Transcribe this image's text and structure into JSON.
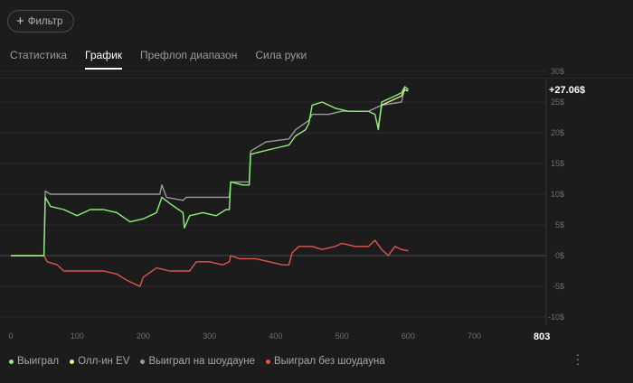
{
  "filter": {
    "label": "Фильтр"
  },
  "tabs": [
    {
      "label": "Статистика",
      "active": false
    },
    {
      "label": "График",
      "active": true
    },
    {
      "label": "Префлоп диапазон",
      "active": false
    },
    {
      "label": "Сила руки",
      "active": false
    }
  ],
  "colors": {
    "won": "#8cf07a",
    "allin_ev": "#e6f587",
    "showdown": "#9a9a9a",
    "non_showdown": "#e0554d"
  },
  "chart_data": {
    "type": "line",
    "final_value_label": "+27.06$",
    "last_x_label": "803",
    "xlim": [
      0,
      803
    ],
    "ylim": [
      -10,
      30
    ],
    "x_ticks": [
      "0",
      "100",
      "200",
      "300",
      "400",
      "500",
      "600",
      "700"
    ],
    "y_ticks": [
      "30$",
      "25$",
      "20$",
      "15$",
      "10$",
      "5$",
      "0$",
      "-5$",
      "-10$"
    ],
    "series": [
      {
        "name": "Выиграл",
        "color": "#8cf07a",
        "points": [
          [
            0,
            0
          ],
          [
            50,
            0
          ],
          [
            52,
            9.5
          ],
          [
            60,
            8
          ],
          [
            80,
            7.5
          ],
          [
            100,
            6.5
          ],
          [
            120,
            7.5
          ],
          [
            140,
            7.5
          ],
          [
            160,
            7
          ],
          [
            180,
            5.5
          ],
          [
            200,
            6
          ],
          [
            220,
            7
          ],
          [
            228,
            9.5
          ],
          [
            240,
            8.5
          ],
          [
            260,
            7
          ],
          [
            262,
            4.5
          ],
          [
            270,
            6.5
          ],
          [
            290,
            7
          ],
          [
            310,
            6.5
          ],
          [
            325,
            7.5
          ],
          [
            330,
            7.5
          ],
          [
            332,
            12
          ],
          [
            350,
            11.5
          ],
          [
            360,
            11.5
          ],
          [
            362,
            16.5
          ],
          [
            380,
            17
          ],
          [
            400,
            17.5
          ],
          [
            420,
            18
          ],
          [
            430,
            19.5
          ],
          [
            445,
            20.5
          ],
          [
            450,
            21.5
          ],
          [
            455,
            24.5
          ],
          [
            470,
            25
          ],
          [
            490,
            24
          ],
          [
            510,
            23.5
          ],
          [
            540,
            23.5
          ],
          [
            550,
            23
          ],
          [
            555,
            20.5
          ],
          [
            560,
            25
          ],
          [
            580,
            26
          ],
          [
            590,
            26.5
          ],
          [
            595,
            27.5
          ],
          [
            600,
            27.06
          ]
        ]
      },
      {
        "name": "Олл-ин EV",
        "color": "#e6f587",
        "points": [
          [
            555,
            21
          ],
          [
            560,
            24.5
          ],
          [
            580,
            25.5
          ],
          [
            590,
            26
          ],
          [
            595,
            27
          ],
          [
            600,
            26.8
          ]
        ]
      },
      {
        "name": "Выиграл на шоудауне",
        "color": "#9a9a9a",
        "points": [
          [
            0,
            0
          ],
          [
            50,
            0
          ],
          [
            52,
            10.5
          ],
          [
            60,
            10
          ],
          [
            100,
            10
          ],
          [
            150,
            10
          ],
          [
            200,
            10
          ],
          [
            225,
            10
          ],
          [
            228,
            11.5
          ],
          [
            235,
            9.5
          ],
          [
            260,
            9
          ],
          [
            265,
            9.5
          ],
          [
            300,
            9.5
          ],
          [
            330,
            9.5
          ],
          [
            332,
            12
          ],
          [
            360,
            12
          ],
          [
            362,
            17
          ],
          [
            385,
            18.5
          ],
          [
            420,
            19
          ],
          [
            430,
            20.5
          ],
          [
            450,
            22
          ],
          [
            455,
            23
          ],
          [
            480,
            23
          ],
          [
            500,
            23.5
          ],
          [
            540,
            23.5
          ],
          [
            560,
            24.5
          ],
          [
            590,
            25
          ],
          [
            595,
            27.5
          ],
          [
            600,
            27
          ]
        ]
      },
      {
        "name": "Выиграл без шоудауна",
        "color": "#e0554d",
        "points": [
          [
            0,
            0
          ],
          [
            50,
            0
          ],
          [
            55,
            -1
          ],
          [
            70,
            -1.5
          ],
          [
            80,
            -2.5
          ],
          [
            100,
            -2.5
          ],
          [
            120,
            -2.5
          ],
          [
            140,
            -2.5
          ],
          [
            160,
            -3
          ],
          [
            175,
            -4
          ],
          [
            195,
            -5
          ],
          [
            200,
            -3.5
          ],
          [
            220,
            -2
          ],
          [
            240,
            -2.5
          ],
          [
            270,
            -2.5
          ],
          [
            280,
            -1
          ],
          [
            300,
            -1
          ],
          [
            320,
            -1.5
          ],
          [
            330,
            -1
          ],
          [
            332,
            0
          ],
          [
            345,
            -0.5
          ],
          [
            370,
            -0.5
          ],
          [
            390,
            -1
          ],
          [
            410,
            -1.5
          ],
          [
            420,
            -1.5
          ],
          [
            425,
            0.5
          ],
          [
            435,
            1.5
          ],
          [
            455,
            1.5
          ],
          [
            470,
            1
          ],
          [
            490,
            1.5
          ],
          [
            500,
            2
          ],
          [
            520,
            1.5
          ],
          [
            540,
            1.5
          ],
          [
            550,
            2.5
          ],
          [
            560,
            1
          ],
          [
            570,
            0
          ],
          [
            580,
            1.5
          ],
          [
            590,
            1
          ],
          [
            600,
            0.8
          ]
        ]
      }
    ]
  },
  "legend": [
    {
      "label": "Выиграл",
      "color": "#8cf07a"
    },
    {
      "label": "Олл-ин EV",
      "color": "#e6f587"
    },
    {
      "label": "Выиграл на шоудауне",
      "color": "#9a9a9a"
    },
    {
      "label": "Выиграл без шоудауна",
      "color": "#e0554d"
    }
  ],
  "menu": {
    "icon": "more-vertical-icon"
  }
}
